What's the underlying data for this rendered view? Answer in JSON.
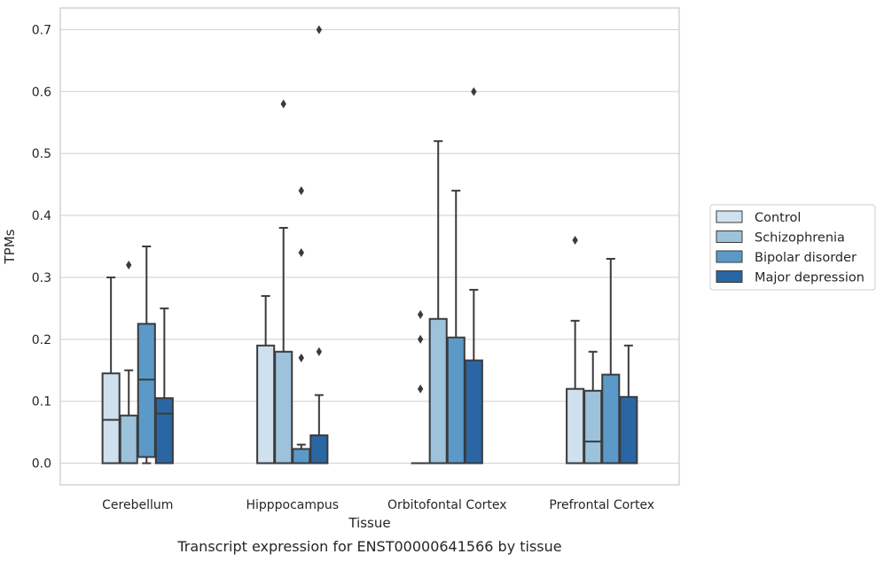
{
  "caption": "Transcript expression for ENST00000641566 by tissue",
  "chart_data": {
    "type": "box",
    "xlabel": "Tissue",
    "ylabel": "TPMs",
    "ylim": [
      -0.035,
      0.735
    ],
    "yticks": [
      0.0,
      0.1,
      0.2,
      0.3,
      0.4,
      0.5,
      0.6,
      0.7
    ],
    "ytick_labels": [
      "0.0",
      "0.1",
      "0.2",
      "0.3",
      "0.4",
      "0.5",
      "0.6",
      "0.7"
    ],
    "grid": "horizontal",
    "legend_position": "right",
    "categories": [
      "Cerebellum",
      "Hipppocampus",
      "Orbitofontal Cortex",
      "Prefrontal Cortex"
    ],
    "series": [
      {
        "name": "Control",
        "color": "#cfe0ef",
        "boxes": [
          {
            "whislo": 0.0,
            "q1": 0.0,
            "med": 0.07,
            "q3": 0.145,
            "whishi": 0.3,
            "fliers": []
          },
          {
            "whislo": 0.0,
            "q1": 0.0,
            "med": 0.0,
            "q3": 0.19,
            "whishi": 0.27,
            "fliers": []
          },
          {
            "whislo": 0.0,
            "q1": 0.0,
            "med": 0.0,
            "q3": 0.0,
            "whishi": 0.0,
            "fliers": [
              0.12,
              0.2,
              0.24
            ]
          },
          {
            "whislo": 0.0,
            "q1": 0.0,
            "med": 0.0,
            "q3": 0.12,
            "whishi": 0.23,
            "fliers": [
              0.36
            ]
          }
        ]
      },
      {
        "name": "Schizophrenia",
        "color": "#9cc2dc",
        "boxes": [
          {
            "whislo": 0.0,
            "q1": 0.0,
            "med": 0.0,
            "q3": 0.077,
            "whishi": 0.15,
            "fliers": [
              0.32
            ]
          },
          {
            "whislo": 0.0,
            "q1": 0.0,
            "med": 0.0,
            "q3": 0.18,
            "whishi": 0.38,
            "fliers": [
              0.58
            ]
          },
          {
            "whislo": 0.0,
            "q1": 0.0,
            "med": 0.0,
            "q3": 0.233,
            "whishi": 0.52,
            "fliers": []
          },
          {
            "whislo": 0.0,
            "q1": 0.0,
            "med": 0.035,
            "q3": 0.117,
            "whishi": 0.18,
            "fliers": []
          }
        ]
      },
      {
        "name": "Bipolar disorder",
        "color": "#5b9ac8",
        "boxes": [
          {
            "whislo": 0.0,
            "q1": 0.01,
            "med": 0.135,
            "q3": 0.225,
            "whishi": 0.35,
            "fliers": []
          },
          {
            "whislo": 0.0,
            "q1": 0.0,
            "med": 0.0,
            "q3": 0.023,
            "whishi": 0.03,
            "fliers": [
              0.17,
              0.34,
              0.44
            ]
          },
          {
            "whislo": 0.0,
            "q1": 0.0,
            "med": 0.0,
            "q3": 0.203,
            "whishi": 0.44,
            "fliers": []
          },
          {
            "whislo": 0.0,
            "q1": 0.0,
            "med": 0.0,
            "q3": 0.143,
            "whishi": 0.33,
            "fliers": []
          }
        ]
      },
      {
        "name": "Major depression",
        "color": "#2a66a3",
        "boxes": [
          {
            "whislo": 0.0,
            "q1": 0.0,
            "med": 0.08,
            "q3": 0.105,
            "whishi": 0.25,
            "fliers": []
          },
          {
            "whislo": 0.0,
            "q1": 0.0,
            "med": 0.0,
            "q3": 0.045,
            "whishi": 0.11,
            "fliers": [
              0.18,
              0.7
            ]
          },
          {
            "whislo": 0.0,
            "q1": 0.0,
            "med": 0.0,
            "q3": 0.166,
            "whishi": 0.28,
            "fliers": [
              0.6
            ]
          },
          {
            "whislo": 0.0,
            "q1": 0.0,
            "med": 0.0,
            "q3": 0.107,
            "whishi": 0.19,
            "fliers": []
          }
        ]
      }
    ]
  }
}
